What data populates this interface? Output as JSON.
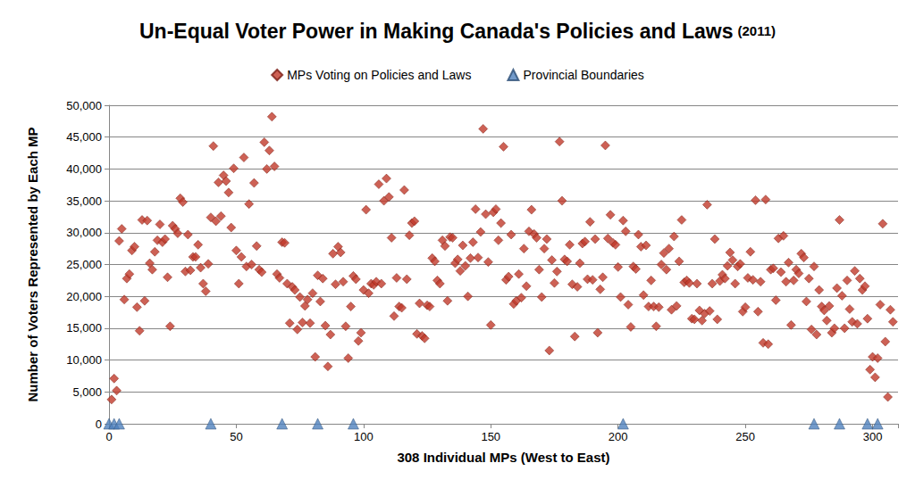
{
  "chart_data": {
    "type": "scatter",
    "title": "Un-Equal Voter Power in Making Canada's Policies and Laws",
    "subtitle": "(2011)",
    "x_label": "308 Individual MPs (West to East)",
    "y_label": "Number of Voters Represented by Each MP",
    "xlim": [
      0,
      310
    ],
    "xticks": [
      0,
      50,
      100,
      150,
      200,
      250,
      300
    ],
    "ylim": [
      0,
      50000
    ],
    "yticks": [
      0,
      {
        "value": 5000,
        "label": "5,000"
      },
      {
        "value": 10000,
        "label": "10,000"
      },
      {
        "value": 15000,
        "label": "15,000"
      },
      {
        "value": 20000,
        "label": "20,000"
      },
      {
        "value": 25000,
        "label": "25,000"
      },
      {
        "value": 30000,
        "label": "30,000"
      },
      {
        "value": 35000,
        "label": "35,000"
      },
      {
        "value": 40000,
        "label": "40,000"
      },
      {
        "value": 45000,
        "label": "45,000"
      },
      {
        "value": 50000,
        "label": "50,000"
      }
    ],
    "grid": true,
    "legend": "top",
    "series": [
      {
        "name": "MPs Voting on Policies and Laws",
        "color": "#c0392b",
        "marker": "diamond",
        "x": [
          1,
          2,
          3,
          4,
          5,
          6,
          7,
          8,
          9,
          10,
          11,
          12,
          13,
          14,
          15,
          16,
          17,
          18,
          19,
          20,
          21,
          22,
          23,
          24,
          25,
          26,
          27,
          28,
          29,
          30,
          31,
          32,
          33,
          34,
          35,
          36,
          37,
          38,
          39,
          40,
          41,
          42,
          43,
          44,
          45,
          46,
          47,
          48,
          49,
          50,
          51,
          52,
          53,
          54,
          55,
          56,
          57,
          58,
          59,
          60,
          61,
          62,
          63,
          64,
          65,
          66,
          67,
          68,
          69,
          70,
          71,
          72,
          73,
          74,
          75,
          76,
          77,
          78,
          79,
          80,
          81,
          82,
          83,
          84,
          85,
          86,
          87,
          88,
          89,
          90,
          91,
          92,
          93,
          94,
          95,
          96,
          97,
          98,
          99,
          100,
          101,
          102,
          103,
          104,
          105,
          106,
          107,
          108,
          109,
          110,
          111,
          112,
          113,
          114,
          115,
          116,
          117,
          118,
          119,
          120,
          121,
          122,
          123,
          124,
          125,
          126,
          127,
          128,
          129,
          130,
          131,
          132,
          133,
          134,
          135,
          136,
          137,
          138,
          139,
          140,
          141,
          142,
          143,
          144,
          145,
          146,
          147,
          148,
          149,
          150,
          151,
          152,
          153,
          154,
          155,
          156,
          157,
          158,
          159,
          160,
          161,
          162,
          163,
          164,
          165,
          166,
          167,
          168,
          169,
          170,
          171,
          172,
          173,
          174,
          175,
          176,
          177,
          178,
          179,
          180,
          181,
          182,
          183,
          184,
          185,
          186,
          187,
          188,
          189,
          190,
          191,
          192,
          193,
          194,
          195,
          196,
          197,
          198,
          199,
          200,
          201,
          202,
          203,
          204,
          205,
          206,
          207,
          208,
          209,
          210,
          211,
          212,
          213,
          214,
          215,
          216,
          217,
          218,
          219,
          220,
          221,
          222,
          223,
          224,
          225,
          226,
          227,
          228,
          229,
          230,
          231,
          232,
          233,
          234,
          235,
          236,
          237,
          238,
          239,
          240,
          241,
          242,
          243,
          244,
          245,
          246,
          247,
          248,
          249,
          250,
          251,
          252,
          253,
          254,
          255,
          256,
          257,
          258,
          259,
          260,
          261,
          262,
          263,
          264,
          265,
          266,
          267,
          268,
          269,
          270,
          271,
          272,
          273,
          274,
          275,
          276,
          277,
          278,
          279,
          280,
          281,
          282,
          283,
          284,
          285,
          286,
          287,
          288,
          289,
          290,
          291,
          292,
          293,
          294,
          295,
          296,
          297,
          298,
          299,
          300,
          301,
          302,
          303,
          304,
          305,
          306,
          307,
          308
        ],
        "values": [
          3800,
          7100,
          5200,
          28700,
          30600,
          19500,
          22800,
          23500,
          27200,
          27800,
          18300,
          14600,
          32000,
          19300,
          31900,
          25200,
          24200,
          27000,
          28800,
          31300,
          28500,
          29000,
          23000,
          15300,
          31100,
          30600,
          29900,
          35400,
          34800,
          23900,
          29700,
          24100,
          26200,
          26200,
          28100,
          24500,
          22000,
          20800,
          25100,
          32400,
          43600,
          31800,
          37900,
          32600,
          39000,
          38100,
          36300,
          30800,
          40100,
          27200,
          22000,
          26200,
          41800,
          24700,
          34500,
          25000,
          37800,
          27900,
          24200,
          23800,
          44200,
          40000,
          42900,
          48200,
          40400,
          23500,
          22900,
          28500,
          28400,
          22000,
          15800,
          21500,
          21000,
          14800,
          19900,
          15900,
          18500,
          19500,
          15800,
          20500,
          10500,
          23300,
          19200,
          22800,
          15400,
          9000,
          14000,
          26700,
          21900,
          27800,
          26900,
          22300,
          15300,
          10300,
          18400,
          23200,
          22700,
          13000,
          14300,
          21000,
          33600,
          20500,
          22000,
          21800,
          22300,
          37600,
          22000,
          35000,
          38500,
          35600,
          29200,
          16900,
          22900,
          18400,
          18200,
          36700,
          22700,
          29600,
          31500,
          31800,
          14100,
          18900,
          13800,
          13400,
          18600,
          18400,
          26000,
          25500,
          22500,
          22000,
          28800,
          27900,
          19300,
          29300,
          29200,
          25200,
          25800,
          24000,
          28000,
          24800,
          20000,
          26000,
          28500,
          33700,
          26100,
          30100,
          46300,
          32900,
          25400,
          15500,
          33200,
          33700,
          28800,
          31500,
          43500,
          22600,
          23100,
          29700,
          18800,
          19300,
          23500,
          19800,
          27500,
          21600,
          30200,
          33600,
          29800,
          29200,
          24200,
          19900,
          27500,
          29000,
          11500,
          25700,
          22100,
          23900,
          44300,
          35000,
          25800,
          25500,
          28100,
          21900,
          13700,
          21500,
          25200,
          28300,
          28600,
          22700,
          31700,
          22600,
          29000,
          14300,
          21100,
          23000,
          43700,
          29100,
          32800,
          28400,
          28100,
          24600,
          19900,
          31900,
          30200,
          18700,
          15200,
          24700,
          24300,
          29700,
          27800,
          20200,
          28000,
          18400,
          22500,
          18400,
          15300,
          18300,
          25000,
          26800,
          24200,
          27500,
          17900,
          29400,
          18500,
          25500,
          32000,
          22200,
          22500,
          22100,
          16500,
          16400,
          22000,
          17800,
          16200,
          17300,
          34400,
          17700,
          22000,
          29000,
          16400,
          22400,
          23400,
          22800,
          24800,
          26900,
          25700,
          22000,
          24700,
          25100,
          17600,
          18300,
          22900,
          27000,
          22600,
          35100,
          17600,
          22300,
          12700,
          35200,
          12500,
          24200,
          24400,
          19400,
          29100,
          23800,
          29500,
          22300,
          25300,
          15500,
          22500,
          24200,
          23600,
          26700,
          26100,
          19200,
          22800,
          14800,
          24700,
          14000,
          21000,
          18400,
          17800,
          16200,
          18500,
          14300,
          15000,
          21300,
          32000,
          20100,
          15000,
          22500,
          18000,
          16000,
          24000,
          15700,
          22800,
          21000,
          21600,
          16500,
          8500,
          10500,
          7300,
          10300,
          18700,
          31400,
          12900,
          4200,
          17900,
          16000
        ]
      },
      {
        "name": "Provincial Boundaries",
        "color": "#4f81bd",
        "marker": "triangle",
        "x": [
          0,
          2,
          4,
          40,
          68,
          82,
          96,
          202,
          277,
          287,
          298,
          302
        ],
        "values": [
          0,
          0,
          0,
          0,
          0,
          0,
          0,
          0,
          0,
          0,
          0,
          0
        ]
      }
    ]
  }
}
